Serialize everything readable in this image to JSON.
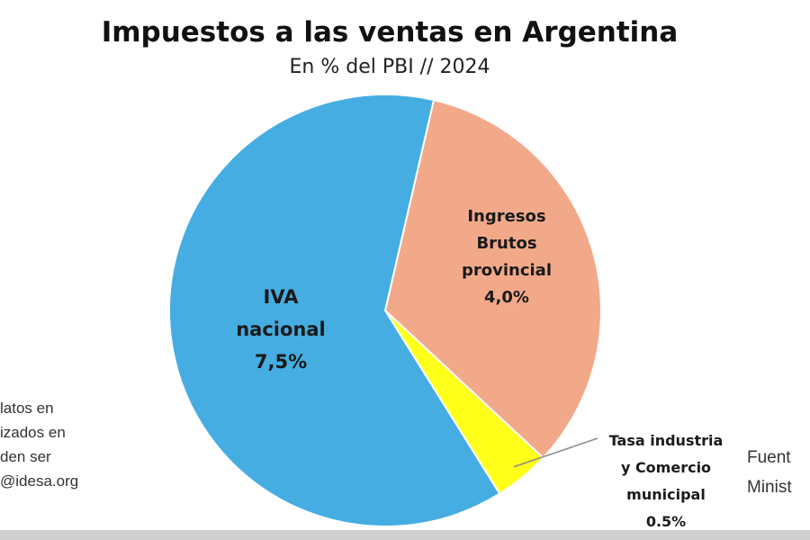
{
  "chart_data": {
    "type": "pie",
    "title": "Impuestos a las ventas en Argentina",
    "subtitle": "En % del PBI // 2024",
    "unit": "% del PBI",
    "slices": [
      {
        "name": "Ingresos Brutos provincial",
        "lines": [
          "Ingresos",
          "Brutos",
          "provincial",
          "4,0%"
        ],
        "value": 4.0,
        "color": "#f2a98a"
      },
      {
        "name": "Tasa industria y Comercio municipal",
        "lines": [
          "Tasa industria",
          "y Comercio",
          "municipal",
          "0.5%"
        ],
        "value": 0.5,
        "color": "#ffff1a"
      },
      {
        "name": "IVA nacional",
        "lines": [
          "IVA",
          "nacional",
          "7,5%"
        ],
        "value": 7.5,
        "color": "#45ade2"
      }
    ]
  },
  "notes": {
    "left": [
      "latos en",
      "izados en",
      "den ser",
      "@idesa.org"
    ],
    "right": [
      "Fuent",
      "Minist"
    ]
  }
}
